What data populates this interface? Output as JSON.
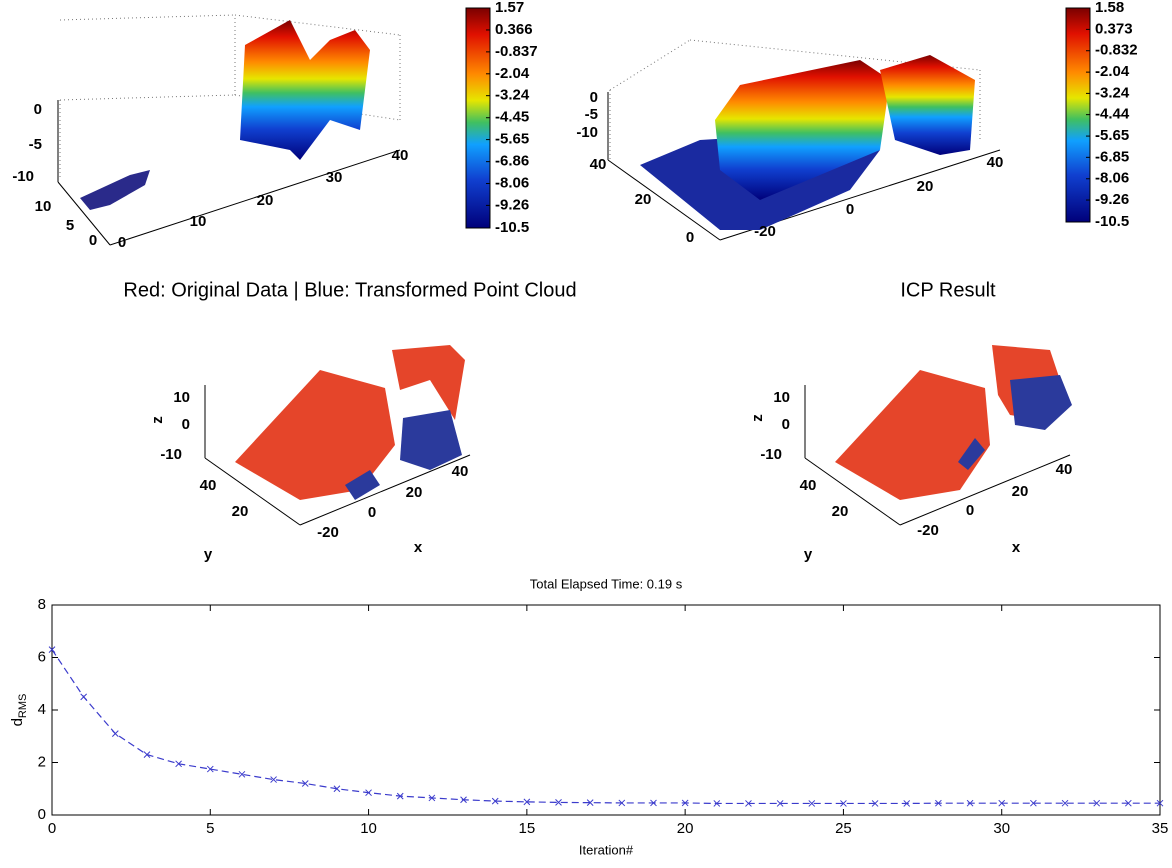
{
  "chart_data": [
    {
      "type": "scatter3d",
      "zticks": [
        0,
        -5,
        -10
      ],
      "yticks": [
        10,
        5,
        0
      ],
      "xticks": [
        0,
        10,
        20,
        30,
        40
      ],
      "colormap": "jet",
      "clim": [
        -10.5,
        1.57
      ],
      "colorbar_ticks": [
        1.57,
        0.366,
        -0.837,
        -2.04,
        -3.24,
        -4.45,
        -5.65,
        -6.86,
        -8.06,
        -9.26,
        -10.5
      ]
    },
    {
      "type": "scatter3d",
      "zticks": [
        0,
        -5,
        -10
      ],
      "yticks": [
        40,
        20,
        0
      ],
      "xticks": [
        -20,
        0,
        20,
        40
      ],
      "colormap": "jet",
      "clim": [
        -10.5,
        1.58
      ],
      "colorbar_ticks": [
        1.58,
        0.373,
        -0.832,
        -2.04,
        -3.24,
        -4.44,
        -5.65,
        -6.85,
        -8.06,
        -9.26,
        -10.5
      ]
    },
    {
      "type": "scatter3d",
      "title": "Red: Original Data | Blue: Transformed Point Cloud",
      "zlabel": "z",
      "ylabel": "y",
      "xlabel": "x",
      "zticks": [
        10,
        0,
        -10
      ],
      "yticks": [
        40,
        20
      ],
      "xticks": [
        -20,
        0,
        20,
        40
      ],
      "colors": [
        "#e5452a",
        "#2b3a9c"
      ]
    },
    {
      "type": "scatter3d",
      "title": "ICP Result",
      "zlabel": "z",
      "ylabel": "y",
      "xlabel": "x",
      "zticks": [
        10,
        0,
        -10
      ],
      "yticks": [
        40,
        20
      ],
      "xticks": [
        -20,
        0,
        20,
        40
      ],
      "colors": [
        "#e5452a",
        "#2b3a9c"
      ]
    },
    {
      "type": "line",
      "title": "Total Elapsed Time: 0.19 s",
      "xlabel": "Iteration#",
      "ylabel": "d",
      "ylabel_subscript": "RMS",
      "x": [
        0,
        1,
        2,
        3,
        4,
        5,
        6,
        7,
        8,
        9,
        10,
        11,
        12,
        13,
        14,
        15,
        16,
        17,
        18,
        19,
        20,
        21,
        22,
        23,
        24,
        25,
        26,
        27,
        28,
        29,
        30,
        31,
        32,
        33,
        34,
        35
      ],
      "series": [
        {
          "color": "#3b3bcc",
          "values": [
            6.3,
            4.5,
            3.1,
            2.3,
            1.95,
            1.75,
            1.55,
            1.35,
            1.2,
            1.0,
            0.85,
            0.72,
            0.65,
            0.58,
            0.53,
            0.5,
            0.48,
            0.47,
            0.46,
            0.46,
            0.46,
            0.44,
            0.44,
            0.44,
            0.44,
            0.44,
            0.44,
            0.44,
            0.45,
            0.45,
            0.45,
            0.45,
            0.45,
            0.45,
            0.45,
            0.45
          ]
        }
      ],
      "xlim": [
        0,
        35
      ],
      "ylim": [
        0,
        8
      ],
      "xticks": [
        0,
        5,
        10,
        15,
        20,
        25,
        30,
        35
      ],
      "yticks": [
        0,
        2,
        4,
        6,
        8
      ],
      "grid": false
    }
  ]
}
